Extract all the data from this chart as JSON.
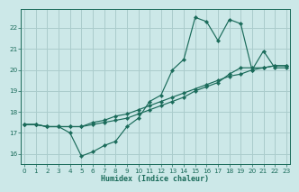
{
  "xlabel": "Humidex (Indice chaleur)",
  "bg_color": "#cce8e8",
  "grid_color": "#aacccc",
  "line_color": "#1a6b5a",
  "xlim": [
    -0.3,
    23.3
  ],
  "ylim": [
    15.5,
    22.9
  ],
  "yticks": [
    16,
    17,
    18,
    19,
    20,
    21,
    22
  ],
  "xticks": [
    0,
    1,
    2,
    3,
    4,
    5,
    6,
    7,
    8,
    9,
    10,
    11,
    12,
    13,
    14,
    15,
    16,
    17,
    18,
    19,
    20,
    21,
    22,
    23
  ],
  "line1_x": [
    0,
    1,
    2,
    3,
    4,
    5,
    6,
    7,
    8,
    9,
    10,
    11,
    12,
    13,
    14,
    15,
    16,
    17,
    18,
    19,
    20,
    21,
    22,
    23
  ],
  "line1_y": [
    17.4,
    17.4,
    17.3,
    17.3,
    17.0,
    15.9,
    16.1,
    16.4,
    16.6,
    17.3,
    17.7,
    18.5,
    18.8,
    20.0,
    20.5,
    22.5,
    22.3,
    21.4,
    22.4,
    22.2,
    20.0,
    20.9,
    20.1,
    20.1
  ],
  "line2_x": [
    0,
    1,
    2,
    3,
    4,
    5,
    6,
    7,
    8,
    9,
    10,
    11,
    12,
    13,
    14,
    15,
    16,
    17,
    18,
    19,
    20,
    21,
    22,
    23
  ],
  "line2_y": [
    17.4,
    17.4,
    17.3,
    17.3,
    17.3,
    17.3,
    17.5,
    17.6,
    17.8,
    17.9,
    18.1,
    18.3,
    18.5,
    18.7,
    18.9,
    19.1,
    19.3,
    19.5,
    19.7,
    19.8,
    20.0,
    20.1,
    20.2,
    20.2
  ],
  "line3_x": [
    0,
    1,
    2,
    3,
    4,
    5,
    6,
    7,
    8,
    9,
    10,
    11,
    12,
    13,
    14,
    15,
    16,
    17,
    18,
    19,
    20,
    21,
    22,
    23
  ],
  "line3_y": [
    17.4,
    17.4,
    17.3,
    17.3,
    17.3,
    17.3,
    17.4,
    17.5,
    17.6,
    17.7,
    17.9,
    18.1,
    18.3,
    18.5,
    18.7,
    19.0,
    19.2,
    19.4,
    19.8,
    20.1,
    20.1,
    20.1,
    20.2,
    20.2
  ]
}
